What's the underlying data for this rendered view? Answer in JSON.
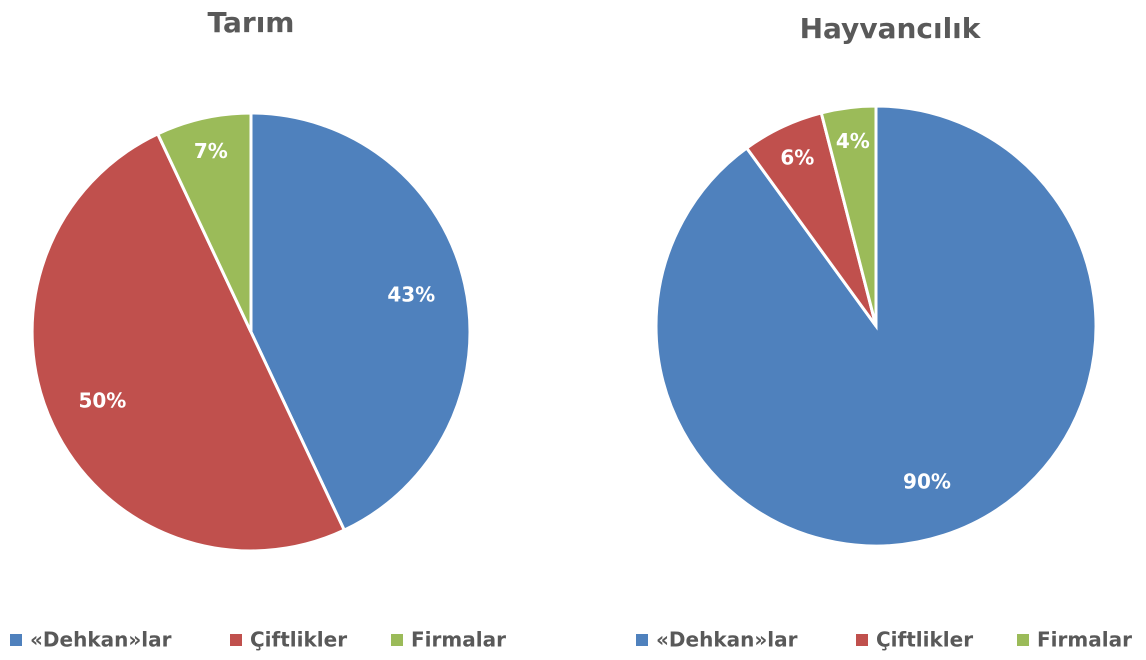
{
  "chart_data": [
    {
      "type": "pie",
      "title": "Tarım",
      "categories": [
        "«Dehkan»lar",
        "Çiftlikler",
        "Firmalar"
      ],
      "values": [
        43,
        50,
        7
      ],
      "value_labels": [
        "43%",
        "50%",
        "7%"
      ],
      "colors": [
        "#4f81bd",
        "#c0504d",
        "#9bbb59"
      ],
      "legend": "bottom"
    },
    {
      "type": "pie",
      "title": "Hayvancılık",
      "categories": [
        "«Dehkan»lar",
        "Çiftlikler",
        "Firmalar"
      ],
      "values": [
        90,
        6,
        4
      ],
      "value_labels": [
        "90%",
        "6%",
        "4%"
      ],
      "colors": [
        "#4f81bd",
        "#c0504d",
        "#9bbb59"
      ],
      "legend": "bottom"
    }
  ]
}
